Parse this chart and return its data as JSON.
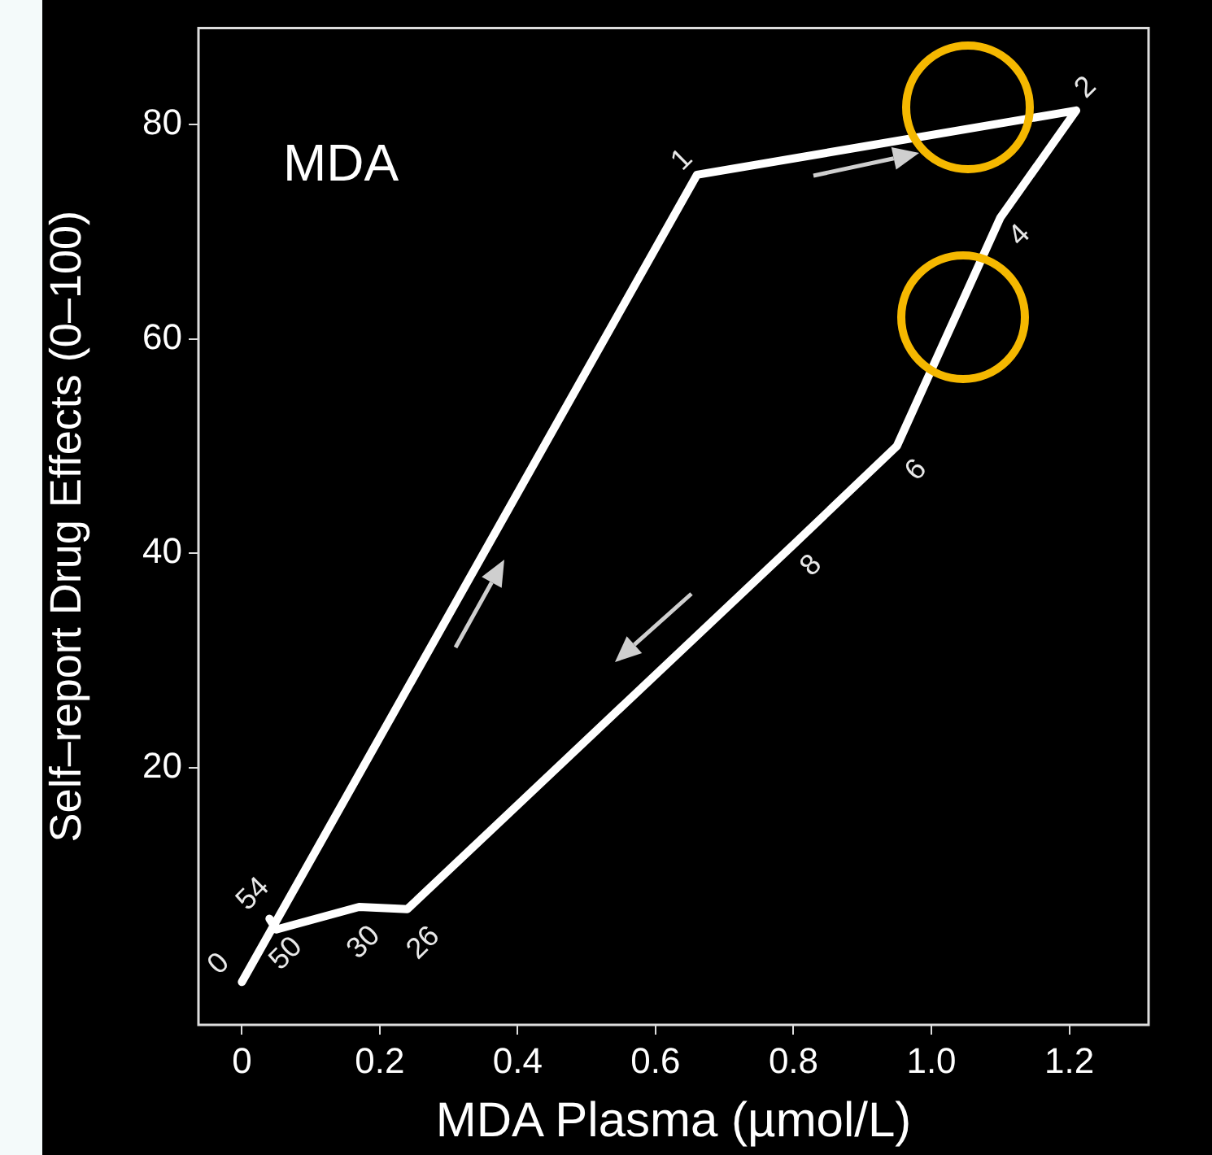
{
  "chart_data": {
    "type": "line",
    "title": "MDA",
    "xlabel": "MDA Plasma (µmol/L)",
    "ylabel": "Self–report Drug Effects (0–100)",
    "x": [
      0,
      0.66,
      1.21,
      1.1,
      0.95,
      0.8,
      0.24,
      0.17,
      0.05,
      0.04
    ],
    "values": [
      0,
      75.3,
      81.3,
      71.3,
      50,
      40.8,
      6.8,
      7.0,
      4.9,
      5.9
    ],
    "color": "#ffffff",
    "xlim": [
      -0.063,
      1.315
    ],
    "ylim": [
      -4,
      89
    ],
    "xticks": [
      0,
      0.2,
      0.4,
      0.6,
      0.8,
      {
        "value": 1,
        "label": "1.0"
      },
      1.2
    ],
    "yticks": [
      20,
      40,
      60,
      80
    ],
    "grid": false,
    "marker": "none",
    "line_style": "solid",
    "annotations": [
      {
        "text": "0",
        "x": 0,
        "y": 0
      },
      {
        "text": "1",
        "x": 0.66,
        "y": 75.3
      },
      {
        "text": "2",
        "x": 1.21,
        "y": 81.3
      },
      {
        "text": "4",
        "x": 1.1,
        "y": 71.3
      },
      {
        "text": "6",
        "x": 0.95,
        "y": 50
      },
      {
        "text": "8",
        "x": 0.8,
        "y": 40.8
      },
      {
        "text": "26",
        "x": 0.24,
        "y": 6.8
      },
      {
        "text": "30",
        "x": 0.17,
        "y": 7.0
      },
      {
        "text": "50",
        "x": 0.05,
        "y": 4.9
      },
      {
        "text": "54",
        "x": 0.04,
        "y": 5.9
      }
    ]
  }
}
